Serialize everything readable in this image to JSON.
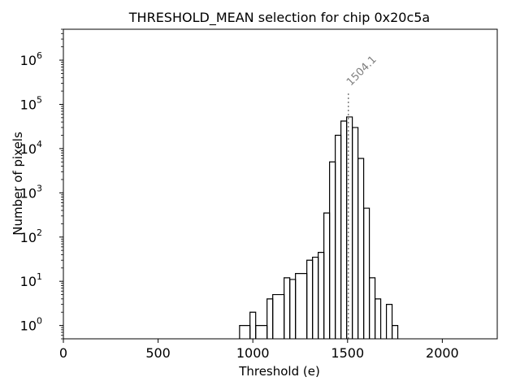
{
  "chart_data": {
    "type": "histogram",
    "title": "THRESHOLD_MEAN selection for chip 0x20c5a",
    "xlabel": "Threshold (e)",
    "ylabel": "Number of pixels",
    "xlim": [
      0,
      2290
    ],
    "ylim": [
      0.5,
      5000000
    ],
    "yscale": "log",
    "grid": false,
    "line_color": "#000000",
    "x_ticks": [
      {
        "value": 0,
        "label": "0"
      },
      {
        "value": 500,
        "label": "500"
      },
      {
        "value": 1000,
        "label": "1000"
      },
      {
        "value": 1500,
        "label": "1500"
      },
      {
        "value": 2000,
        "label": "2000"
      }
    ],
    "y_ticks": [
      {
        "value": 1,
        "base": "10",
        "exp": "0"
      },
      {
        "value": 10,
        "base": "10",
        "exp": "1"
      },
      {
        "value": 100,
        "base": "10",
        "exp": "2"
      },
      {
        "value": 1000,
        "base": "10",
        "exp": "3"
      },
      {
        "value": 10000,
        "base": "10",
        "exp": "4"
      },
      {
        "value": 100000,
        "base": "10",
        "exp": "5"
      },
      {
        "value": 1000000,
        "base": "10",
        "exp": "6"
      }
    ],
    "bins": [
      {
        "x0": 930,
        "x1": 985,
        "count": 1
      },
      {
        "x0": 985,
        "x1": 1015,
        "count": 2
      },
      {
        "x0": 1015,
        "x1": 1075,
        "count": 1
      },
      {
        "x0": 1075,
        "x1": 1105,
        "count": 4
      },
      {
        "x0": 1105,
        "x1": 1165,
        "count": 5
      },
      {
        "x0": 1165,
        "x1": 1195,
        "count": 12
      },
      {
        "x0": 1195,
        "x1": 1225,
        "count": 11
      },
      {
        "x0": 1225,
        "x1": 1285,
        "count": 15
      },
      {
        "x0": 1285,
        "x1": 1315,
        "count": 30
      },
      {
        "x0": 1315,
        "x1": 1345,
        "count": 35
      },
      {
        "x0": 1345,
        "x1": 1375,
        "count": 45
      },
      {
        "x0": 1375,
        "x1": 1405,
        "count": 350
      },
      {
        "x0": 1405,
        "x1": 1435,
        "count": 5000
      },
      {
        "x0": 1435,
        "x1": 1465,
        "count": 20000
      },
      {
        "x0": 1465,
        "x1": 1495,
        "count": 42000
      },
      {
        "x0": 1495,
        "x1": 1525,
        "count": 52000
      },
      {
        "x0": 1525,
        "x1": 1555,
        "count": 30000
      },
      {
        "x0": 1555,
        "x1": 1585,
        "count": 6000
      },
      {
        "x0": 1585,
        "x1": 1615,
        "count": 450
      },
      {
        "x0": 1615,
        "x1": 1645,
        "count": 12
      },
      {
        "x0": 1645,
        "x1": 1675,
        "count": 4
      },
      {
        "x0": 1675,
        "x1": 1705,
        "count": 0
      },
      {
        "x0": 1705,
        "x1": 1735,
        "count": 3
      },
      {
        "x0": 1735,
        "x1": 1765,
        "count": 1
      }
    ],
    "annotations": [
      {
        "x": 1504.1,
        "label": "1504.1",
        "line_top": 200000,
        "style": "dotted",
        "color": "#808080"
      }
    ]
  }
}
